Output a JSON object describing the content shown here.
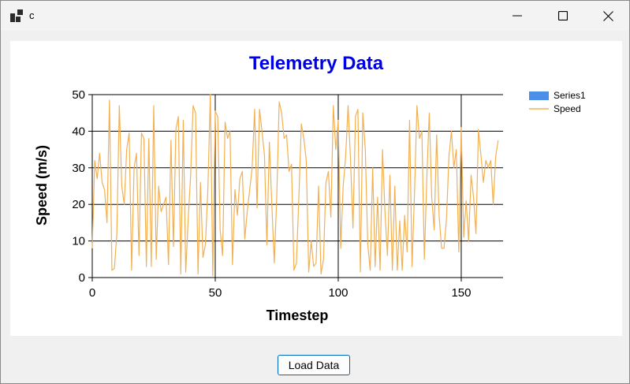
{
  "window": {
    "title": "c",
    "controls": [
      "minimize-icon",
      "maximize-icon",
      "close-icon"
    ]
  },
  "chart_data": {
    "type": "line",
    "title": "Telemetry Data",
    "xlabel": "Timestep",
    "ylabel": "Speed (m/s)",
    "xlim": [
      0,
      167
    ],
    "ylim": [
      0,
      50
    ],
    "x_ticks": [
      0,
      50,
      100,
      150
    ],
    "y_ticks": [
      0,
      10,
      20,
      30,
      40,
      50
    ],
    "grid": true,
    "legend": {
      "placement": "top-right",
      "entries": [
        {
          "name": "Series1",
          "type": "bar",
          "color": "#4a8fe8"
        },
        {
          "name": "Speed",
          "type": "line",
          "color": "#f2b052"
        }
      ]
    },
    "series": [
      {
        "name": "Speed",
        "color": "#f2b052",
        "values": [
          8,
          32,
          27,
          34,
          26,
          24,
          15,
          48.5,
          2,
          2.5,
          12,
          47,
          25,
          20,
          35,
          39.5,
          2,
          30,
          34,
          6,
          39.5,
          38,
          3,
          38,
          3,
          47,
          5,
          25,
          18,
          20,
          22,
          3.5,
          37.5,
          8.5,
          40.5,
          44,
          1,
          43,
          1.5,
          16,
          28,
          47,
          45,
          1,
          26,
          5.5,
          9,
          24,
          50,
          0.5,
          45.5,
          44,
          13,
          6,
          42.5,
          38,
          40,
          3.5,
          24,
          17,
          27,
          29,
          10.5,
          18,
          24,
          30,
          46,
          19,
          46,
          40,
          33.5,
          9,
          37,
          20,
          4,
          22,
          48,
          45,
          38,
          39,
          29,
          31,
          2,
          4,
          22,
          42,
          38,
          32,
          1.5,
          10,
          3,
          4,
          25,
          1,
          5,
          26,
          29,
          16.5,
          47,
          35,
          43,
          8,
          25,
          33,
          47,
          32,
          13.5,
          44,
          46,
          1.5,
          45,
          35,
          9,
          2,
          30,
          3,
          22,
          2,
          35,
          18,
          6,
          28,
          2,
          25,
          2,
          15.5,
          2,
          17,
          7,
          43,
          3,
          23,
          47,
          38,
          40,
          5,
          27,
          45,
          22,
          13,
          39,
          17,
          8,
          8,
          16,
          33,
          40,
          30,
          35,
          7,
          41,
          11,
          21,
          10,
          28,
          22,
          12,
          40.5,
          33.5,
          26,
          32,
          30,
          32,
          20,
          33,
          37.5
        ]
      }
    ]
  },
  "buttons": {
    "load_label": "Load Data"
  }
}
